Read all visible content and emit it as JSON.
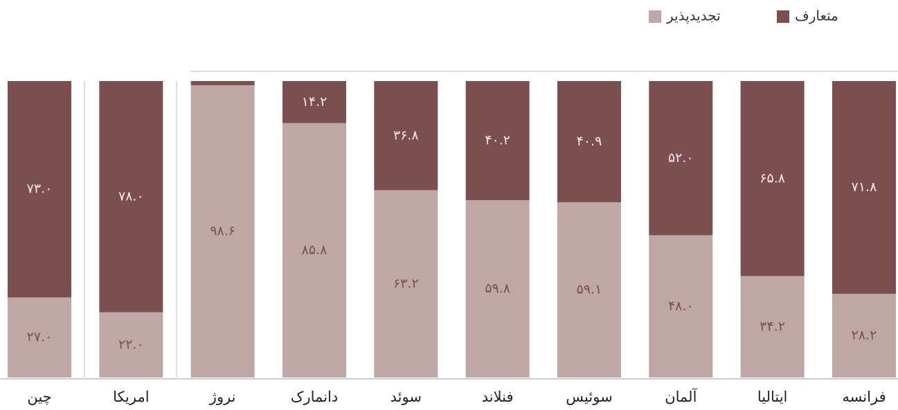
{
  "chart_data": {
    "type": "stacked_bar",
    "categories": [
      "چین",
      "امریکا",
      "نروژ",
      "دانمارک",
      "سوئد",
      "فنلاند",
      "سوئیس",
      "آلمان",
      "ایتالیا",
      "فرانسه"
    ],
    "series": [
      {
        "name": "تجدیدپذیر",
        "color": "#bfa7a6",
        "label_color": "#7b4f50",
        "values": [
          27.0,
          22.0,
          98.6,
          85.8,
          63.2,
          59.8,
          59.1,
          48.0,
          34.2,
          28.2
        ],
        "value_labels": [
          "۲۷.۰",
          "۲۲.۰",
          "۹۸.۶",
          "۸۵.۸",
          "۶۳.۲",
          "۵۹.۸",
          "۵۹.۱",
          "۴۸.۰",
          "۳۴.۲",
          "۲۸.۲"
        ]
      },
      {
        "name": "متعارف",
        "color": "#7b4f50",
        "label_color": "#f3eaea",
        "values": [
          73.0,
          78.0,
          1.4,
          14.2,
          36.8,
          40.2,
          40.9,
          52.0,
          65.8,
          71.8
        ],
        "value_labels": [
          "۷۳.۰",
          "۷۸.۰",
          null,
          "۱۴.۲",
          "۳۶.۸",
          "۴۰.۲",
          "۴۰.۹",
          "۵۲.۰",
          "۶۵.۸",
          "۷۱.۸"
        ]
      }
    ],
    "legend": "top-right"
  }
}
